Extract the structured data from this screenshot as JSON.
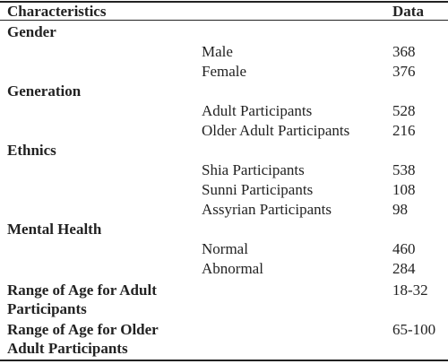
{
  "header": {
    "characteristics": "Characteristics",
    "data": "Data"
  },
  "sections": [
    {
      "title": "Gender",
      "rows": [
        {
          "label": "Male",
          "value": 368
        },
        {
          "label": "Female",
          "value": 376
        }
      ]
    },
    {
      "title": "Generation",
      "rows": [
        {
          "label": "Adult Participants",
          "value": 528
        },
        {
          "label": "Older Adult Participants",
          "value": 216
        }
      ]
    },
    {
      "title": "Ethnics",
      "rows": [
        {
          "label": "Shia Participants",
          "value": 538
        },
        {
          "label": "Sunni Participants",
          "value": 108
        },
        {
          "label": "Assyrian Participants",
          "value": 98
        }
      ]
    },
    {
      "title": "Mental Health",
      "rows": [
        {
          "label": "Normal",
          "value": 460
        },
        {
          "label": "Abnormal",
          "value": 284
        }
      ]
    }
  ],
  "ranges": [
    {
      "label": "Range of Age for Adult Participants",
      "value": "18-32"
    },
    {
      "label": "Range of Age for Older Adult Participants",
      "value": "65-100"
    }
  ]
}
